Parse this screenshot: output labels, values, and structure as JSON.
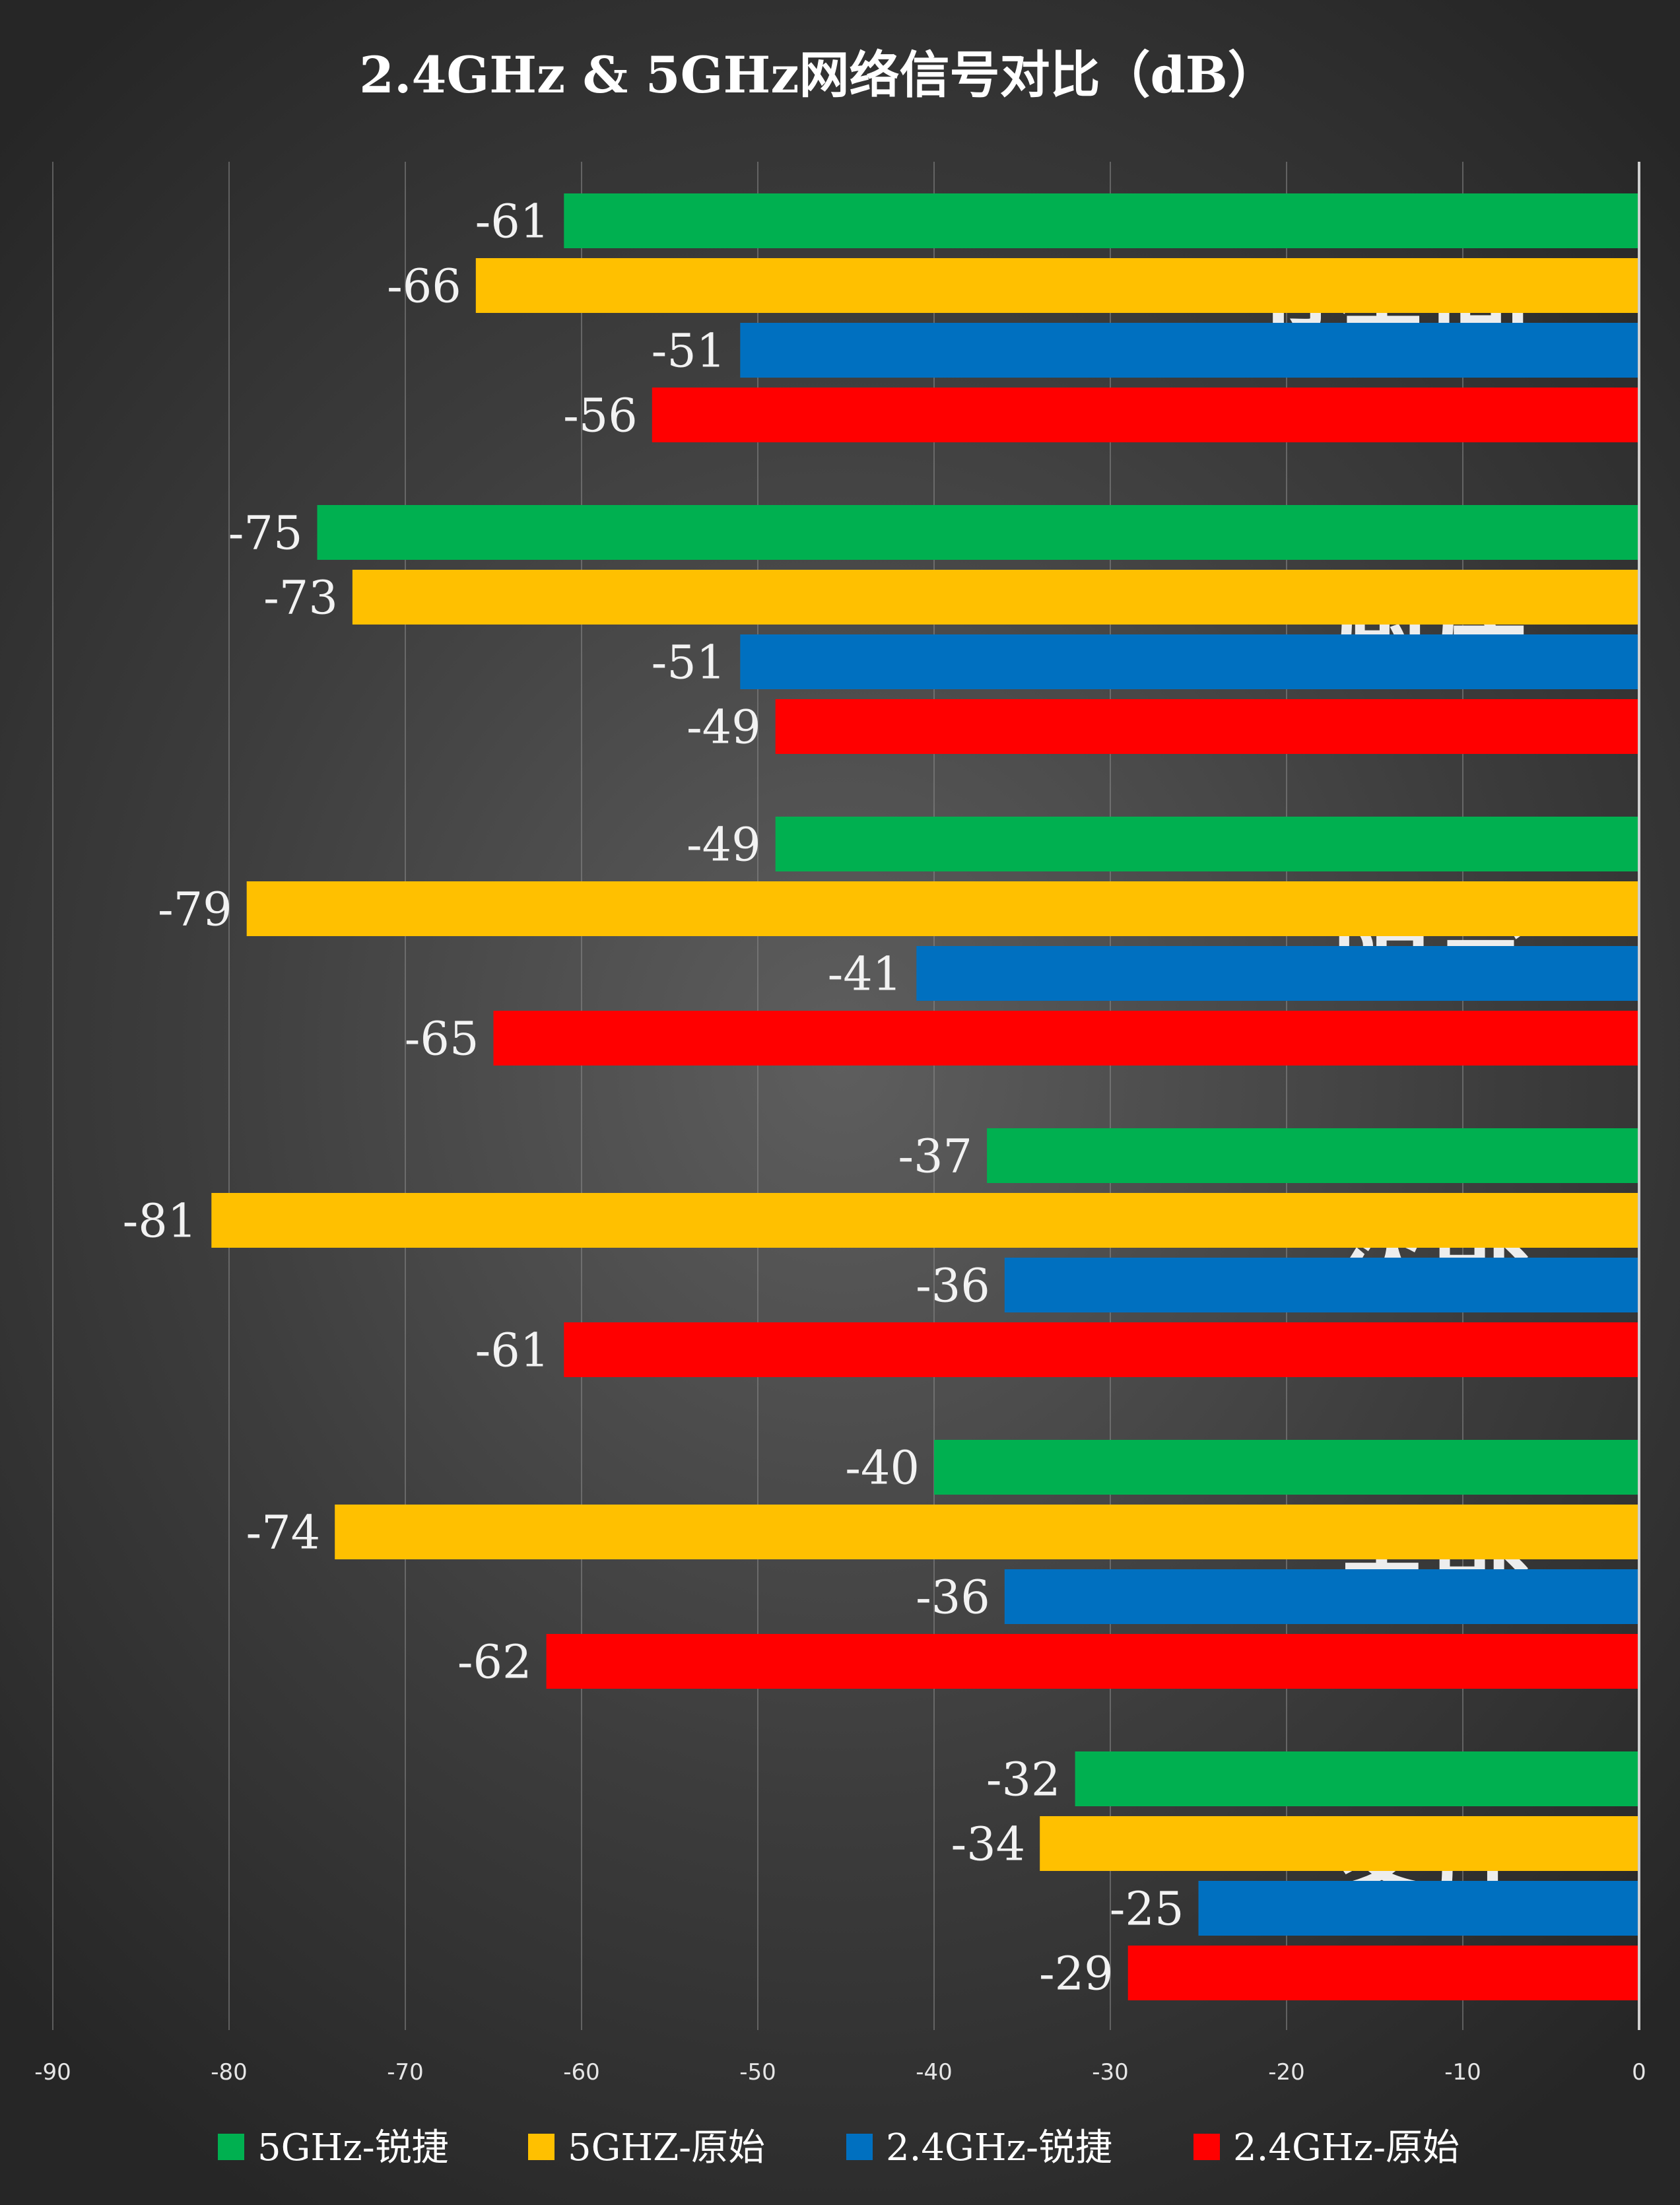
{
  "chart_data": {
    "type": "bar",
    "orientation": "horizontal",
    "title": "2.4GHz & 5GHz网络信号对比（dB）",
    "categories": [
      "卫生间",
      "厨房",
      "阳台",
      "次卧",
      "主卧",
      "客厅"
    ],
    "series": [
      {
        "name": "5GHz-锐捷",
        "color": "#00b050",
        "values": [
          -61,
          -75,
          -49,
          -37,
          -40,
          -32
        ]
      },
      {
        "name": "5GHZ-原始",
        "color": "#ffc000",
        "values": [
          -66,
          -73,
          -79,
          -81,
          -74,
          -34
        ]
      },
      {
        "name": "2.4GHz-锐捷",
        "color": "#0070c0",
        "values": [
          -51,
          -51,
          -41,
          -36,
          -36,
          -25
        ]
      },
      {
        "name": "2.4GHz-原始",
        "color": "#ff0000",
        "values": [
          -56,
          -49,
          -65,
          -61,
          -62,
          -29
        ]
      }
    ],
    "xlim": [
      -90,
      0
    ],
    "xticks": [
      -90,
      -80,
      -70,
      -60,
      -50,
      -40,
      -30,
      -20,
      -10,
      0
    ],
    "xtick_labels": [
      "-90",
      "-80",
      "-70",
      "-60",
      "-50",
      "-40",
      "-30",
      "-20",
      "-10",
      "0"
    ],
    "grid": true,
    "legend": "bottom",
    "data_labels": true,
    "xlabel": "",
    "ylabel": ""
  }
}
